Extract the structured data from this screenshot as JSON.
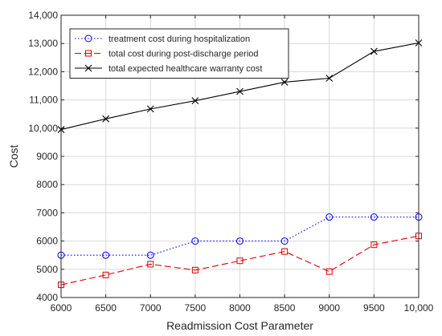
{
  "chart_data": {
    "type": "line",
    "title": "",
    "xlabel": "Readmission Cost Parameter",
    "ylabel": "Cost",
    "x": [
      6000,
      6500,
      7000,
      7500,
      8000,
      8500,
      9000,
      9500,
      10000
    ],
    "x_tick_labels": [
      "6000",
      "6500",
      "7000",
      "7500",
      "8000",
      "8500",
      "9000",
      "9500",
      "10,000"
    ],
    "xlim": [
      6000,
      10000
    ],
    "y_ticks": [
      4000,
      5000,
      6000,
      7000,
      8000,
      9000,
      10000,
      11000,
      12000,
      13000,
      14000
    ],
    "y_tick_labels": [
      "4000",
      "5000",
      "6000",
      "7000",
      "8000",
      "9000",
      "10,000",
      "11,000",
      "12,000",
      "13,000",
      "14,000"
    ],
    "ylim": [
      4000,
      14000
    ],
    "grid": true,
    "legend_position": "top-left",
    "series": [
      {
        "name": "treatment cost during hospitalization",
        "color": "#0000ff",
        "line_style": "dotted",
        "marker": "circle",
        "values": [
          5500,
          5500,
          5500,
          6000,
          6000,
          6000,
          6850,
          6850,
          6850
        ]
      },
      {
        "name": "total cost during post-discharge period",
        "color": "#e00000",
        "line_style": "dashed",
        "marker": "square",
        "values": [
          4450,
          4800,
          5180,
          4970,
          5300,
          5630,
          4920,
          5870,
          6180
        ]
      },
      {
        "name": "total expected healthcare warranty cost",
        "color": "#000000",
        "line_style": "solid",
        "marker": "x",
        "values": [
          9950,
          10330,
          10680,
          10970,
          11300,
          11630,
          11770,
          12720,
          13020
        ]
      }
    ]
  }
}
